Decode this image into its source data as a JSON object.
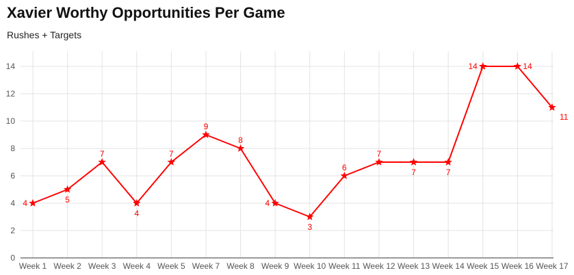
{
  "chart_data": {
    "type": "line",
    "title": "Xavier Worthy Opportunities Per Game",
    "subtitle": "Rushes + Targets",
    "xlabel": "",
    "ylabel": "",
    "categories": [
      "Week 1",
      "Week 2",
      "Week 3",
      "Week 4",
      "Week 5",
      "Week 7",
      "Week 8",
      "Week 9",
      "Week 10",
      "Week 11",
      "Week 12",
      "Week 13",
      "Week 14",
      "Week 15",
      "Week 16",
      "Week 17"
    ],
    "series": [
      {
        "values": [
          4,
          5,
          7,
          4,
          7,
          9,
          8,
          4,
          3,
          6,
          7,
          7,
          7,
          14,
          14,
          11
        ],
        "color": "#ff0000",
        "marker": "star"
      }
    ],
    "data_labels": [
      "4",
      "5",
      "7",
      "4",
      "7",
      "9",
      "8",
      "4",
      "3",
      "6",
      "7",
      "7",
      "7",
      "14",
      "14",
      "11"
    ],
    "ylim": [
      0,
      14
    ],
    "yticks": [
      "0",
      "2",
      "4",
      "6",
      "8",
      "10",
      "12",
      "14"
    ],
    "grid": true,
    "legend": "none"
  }
}
